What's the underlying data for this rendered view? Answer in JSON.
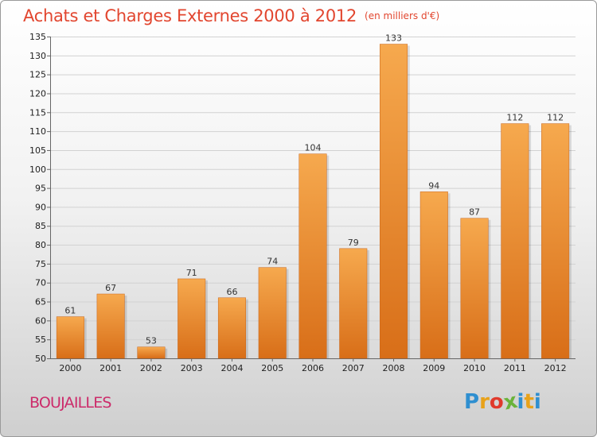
{
  "title": "Achats et Charges Externes 2000 à 2012",
  "subtitle": "(en milliers d'€)",
  "commune": "BOUJAILLES",
  "logo": {
    "letters": [
      "P",
      "r",
      "o",
      "x",
      "i",
      "t",
      "i"
    ],
    "colors": [
      "#2f8fd0",
      "#e8a21a",
      "#e03a2c",
      "#6ab33a",
      "#2f8fd0",
      "#e8a21a",
      "#2f8fd0"
    ]
  },
  "colors": {
    "bar_top": "#f6a94e",
    "bar_bottom": "#d86e18",
    "title": "#e2462f",
    "commune": "#cc2b6a"
  },
  "chart_data": {
    "type": "bar",
    "categories": [
      "2000",
      "2001",
      "2002",
      "2003",
      "2004",
      "2005",
      "2006",
      "2007",
      "2008",
      "2009",
      "2010",
      "2011",
      "2012"
    ],
    "values": [
      61,
      67,
      53,
      71,
      66,
      74,
      104,
      79,
      133,
      94,
      87,
      112,
      112
    ],
    "value_labels": [
      "61",
      "67",
      "53",
      "71",
      "66",
      "74",
      "104",
      "79",
      "133",
      "94",
      "87",
      "112",
      "112"
    ],
    "ylim": [
      50,
      135
    ],
    "yticks": [
      50,
      55,
      60,
      65,
      70,
      75,
      80,
      85,
      90,
      95,
      100,
      105,
      110,
      115,
      120,
      125,
      130,
      135
    ],
    "grid": true,
    "xlabel": "",
    "ylabel": ""
  }
}
